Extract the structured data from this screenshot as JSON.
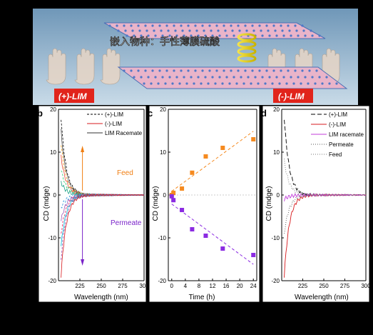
{
  "banner": {
    "title": "嵌入物种：手性薄膜硫酸",
    "label_left": "(+)-LIM",
    "label_right": "(-)-LIM",
    "colors": {
      "label_bg": "#e1241b",
      "sky_top": "#6f97b8",
      "sky_bottom": "#c9dbe8"
    }
  },
  "chart_data": [
    {
      "panel": "b",
      "type": "line",
      "xlabel": "Wavelength (nm)",
      "ylabel": "CD (mdge)",
      "xlim": [
        200,
        300
      ],
      "ylim": [
        -20,
        20
      ],
      "xticks": [
        225,
        250,
        275,
        300
      ],
      "yticks": [
        20,
        10,
        0,
        -10,
        -20
      ],
      "legend": [
        "(+)-LIM",
        "(-)-LIM",
        "LIM Racemate"
      ],
      "legend_colors": [
        "#000000",
        "#d7191c",
        "#333333"
      ],
      "annotations": [
        {
          "text": "Feed",
          "color": "#f07f13"
        },
        {
          "text": "Permeate",
          "color": "#7a23c9"
        }
      ],
      "series_peaks": [
        18,
        15,
        12,
        9,
        6,
        3,
        -3,
        -6,
        -9,
        -12,
        -15,
        -19
      ],
      "series_colors": [
        "#000000",
        "#555555",
        "#f39c12",
        "#e74c3c",
        "#2ecc71",
        "#16a085",
        "#3498db",
        "#9b59b6",
        "#e91e63",
        "#00bcd4",
        "#8e44ad",
        "#d7191c"
      ]
    },
    {
      "panel": "c",
      "type": "scatter",
      "xlabel": "Time (h)",
      "ylabel": "CD (mdge)",
      "xlim": [
        -1,
        25
      ],
      "ylim": [
        -20,
        20
      ],
      "xticks": [
        0,
        4,
        8,
        12,
        16,
        20,
        24
      ],
      "yticks": [
        20,
        10,
        0,
        -10,
        -20
      ],
      "series": [
        {
          "color": "#f58a1f",
          "x": [
            0,
            0.5,
            3,
            6,
            10,
            15,
            24
          ],
          "y": [
            0,
            0.5,
            1.5,
            5.2,
            9,
            11,
            13
          ]
        },
        {
          "color": "#8b2be2",
          "x": [
            0,
            0.5,
            3,
            6,
            10,
            15,
            24
          ],
          "y": [
            -0.3,
            -1.2,
            -3.5,
            -8,
            -9.5,
            -12.5,
            -14
          ]
        }
      ]
    },
    {
      "panel": "d",
      "type": "line",
      "xlabel": "Wavelength (nm)",
      "ylabel": "CD (mdge)",
      "xlim": [
        200,
        300
      ],
      "ylim": [
        -20,
        20
      ],
      "xticks": [
        225,
        250,
        275,
        300
      ],
      "yticks": [
        20,
        10,
        0,
        -10,
        -20
      ],
      "series": [
        {
          "name": "(+)-LIM",
          "color": "#000000",
          "dash": "6,3",
          "peak": 18
        },
        {
          "name": "(-)-LIM",
          "color": "#d7191c",
          "dash": "",
          "peak": -19
        },
        {
          "name": "LIM racemate",
          "color": "#c03bd8",
          "dash": "",
          "peak": -1
        },
        {
          "name": "Permeate",
          "color": "#555555",
          "dash": "1,2",
          "peak": -9
        },
        {
          "name": "Feed",
          "color": "#777777",
          "dash": "1,2",
          "peak": 8
        }
      ]
    }
  ],
  "panel_labels": [
    "b",
    "c",
    "d"
  ]
}
